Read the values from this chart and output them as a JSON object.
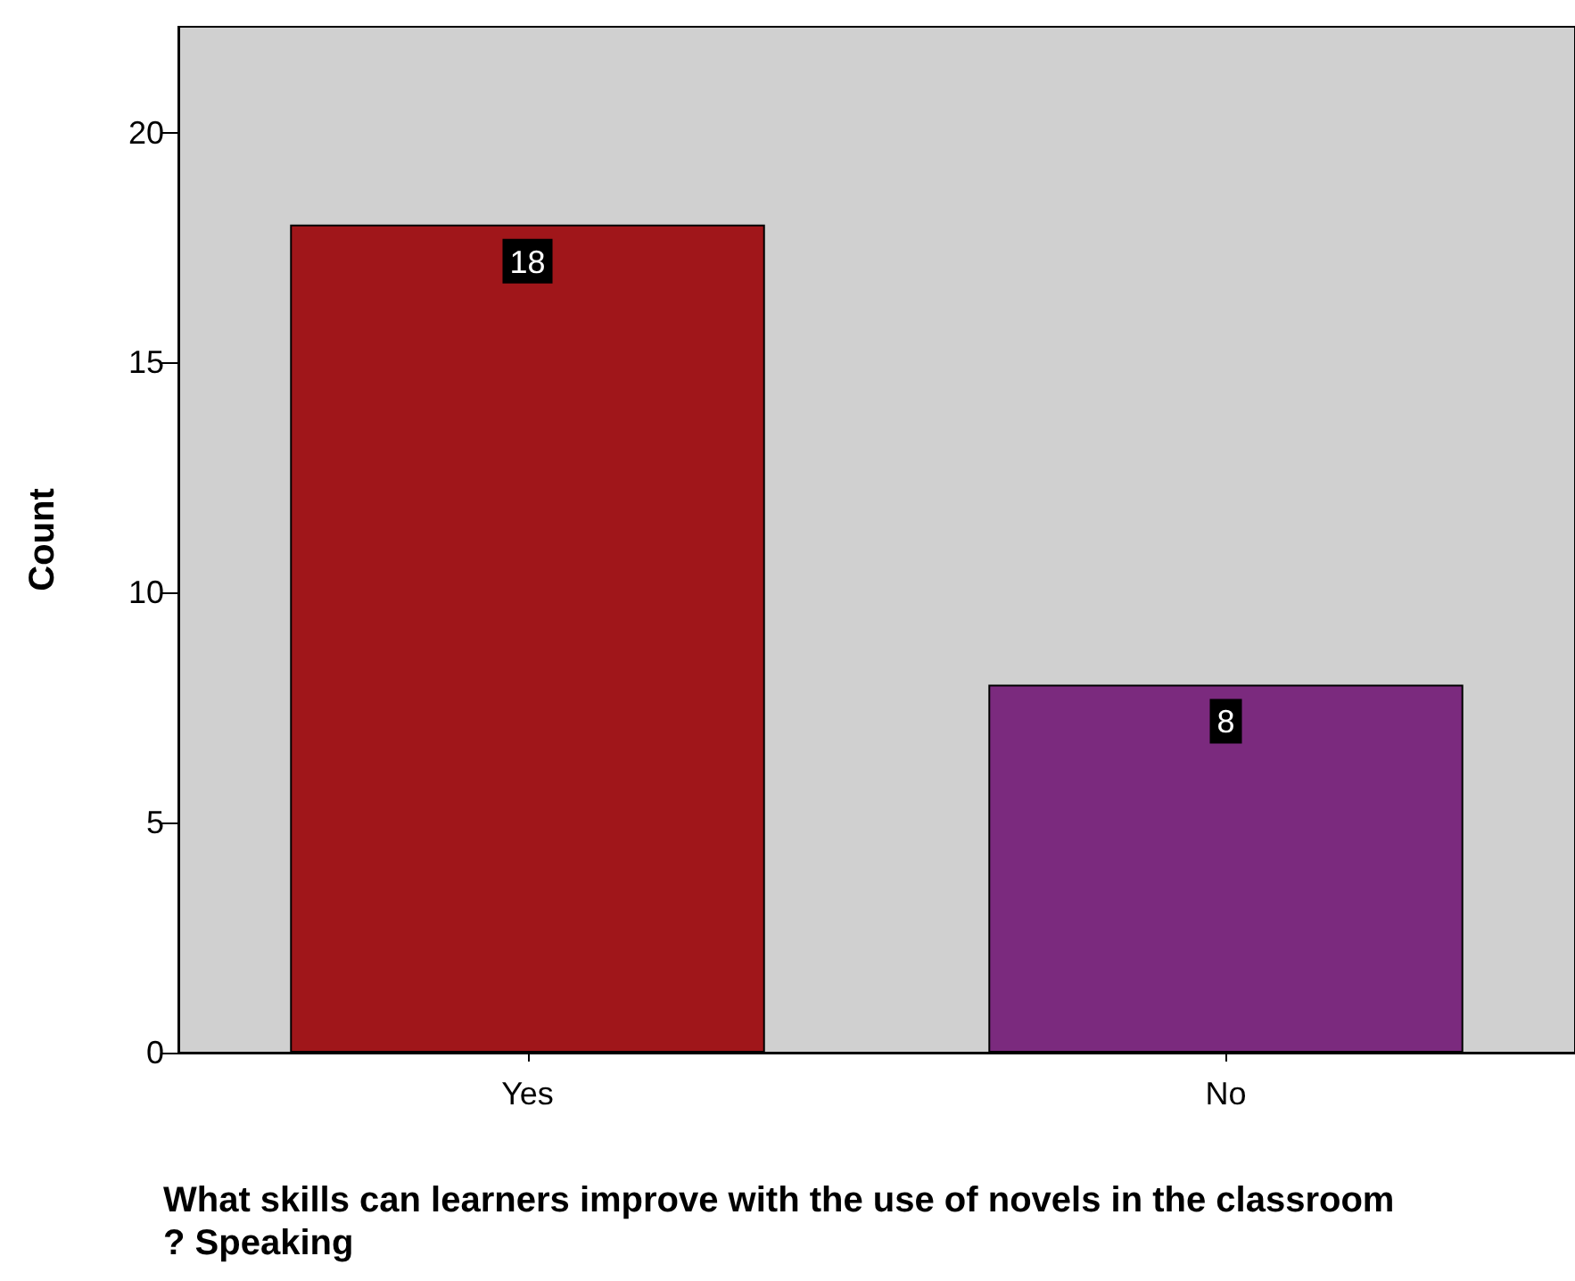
{
  "chart_data": {
    "type": "bar",
    "xlabel": "What skills can learners improve with the use of novels in the classroom? Speaking",
    "ylabel": "Count",
    "categories": [
      "Yes",
      "No"
    ],
    "values": [
      18,
      8
    ],
    "colors": [
      "#a0161a",
      "#7b2a7e"
    ],
    "ylim": [
      0,
      22.3
    ],
    "yticks": [
      0,
      5,
      10,
      15,
      20
    ],
    "data_labels": true
  }
}
